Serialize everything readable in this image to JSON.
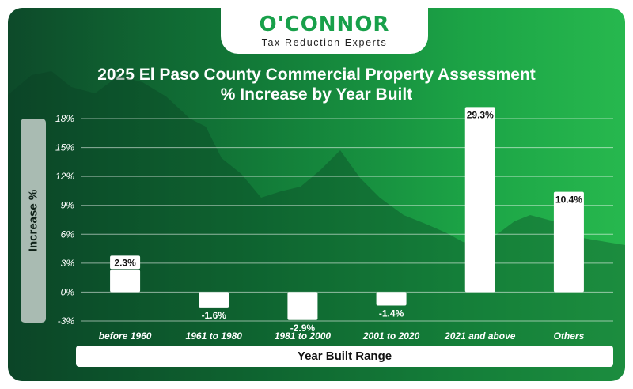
{
  "brand": {
    "name": "O'CONNOR",
    "tagline": "Tax Reduction Experts"
  },
  "chart_data": {
    "type": "bar",
    "title_line1": "2025 El Paso County Commercial Property Assessment",
    "title_line2": "% Increase by Year Built",
    "xlabel": "Year Built Range",
    "ylabel": "Increase %",
    "categories": [
      "before 1960",
      "1961 to 1980",
      "1981 to 2000",
      "2001 to 2020",
      "2021 and above",
      "Others"
    ],
    "values": [
      2.3,
      -1.6,
      -2.9,
      -1.4,
      29.3,
      10.4
    ],
    "value_labels": [
      "2.3%",
      "-1.6%",
      "-2.9%",
      "-1.4%",
      "29.3%",
      "10.4%"
    ],
    "y_ticks": [
      18,
      15,
      12,
      9,
      6,
      3,
      0,
      -3
    ],
    "y_tick_labels": [
      "18%",
      "15%",
      "12%",
      "9%",
      "6%",
      "3%",
      "0%",
      "-3%"
    ],
    "ylim": [
      -3,
      18
    ],
    "grid": true,
    "colors": {
      "bar": "#ffffff",
      "grid": "#ffffff"
    }
  }
}
